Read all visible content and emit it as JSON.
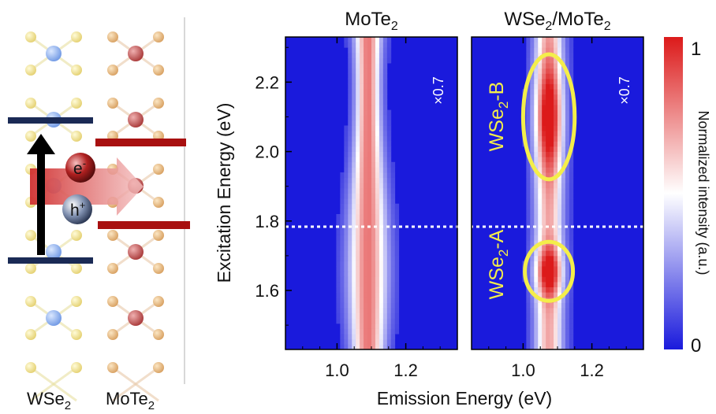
{
  "left_schematic": {
    "layer_label_left": "WSe",
    "layer_label_left_sub": "2",
    "layer_label_right": "MoTe",
    "layer_label_right_sub": "2",
    "electron_label": "e",
    "electron_sup": "-",
    "hole_label": "h",
    "hole_sup": "+",
    "colors": {
      "wse2_atom_blue": "#7ea6ea",
      "se_atom_yellow": "#eede84",
      "mo_atom_red": "#b84848",
      "te_atom_tan": "#e0b070",
      "wse2_band": "#1a2a55",
      "mote2_band": "#a81010",
      "transfer_arrow": "#d03030"
    }
  },
  "panel_left": {
    "title": "MoTe",
    "title_sub": "2",
    "scale_note": "×0.7"
  },
  "panel_right": {
    "title_a": "WSe",
    "title_a_sub": "2",
    "title_b": "/MoTe",
    "title_b_sub": "2",
    "scale_note": "×0.7",
    "annotation_b": "WSe",
    "annotation_b_sub": "2",
    "annotation_b_suffix": "-B",
    "annotation_a": "WSe",
    "annotation_a_sub": "2",
    "annotation_a_suffix": "-A",
    "highlight_color": "#f4ee4a"
  },
  "colorbar": {
    "label": "Normalized intensity (a.u.)",
    "max_label": "1",
    "min_label": "0",
    "colors": [
      "#1a1adc",
      "#ffffff",
      "#dc1a1a"
    ]
  },
  "chart_data": [
    {
      "type": "heatmap",
      "title": "MoTe2",
      "xlabel": "Emission Energy (eV)",
      "ylabel": "Excitation Energy (eV)",
      "xlim": [
        0.85,
        1.35
      ],
      "ylim": [
        1.43,
        2.33
      ],
      "xticks": [
        1.0,
        1.2
      ],
      "xtick_labels": [
        "1.0",
        "1.2"
      ],
      "yticks": [
        1.6,
        1.8,
        2.0,
        2.2
      ],
      "ytick_labels": [
        "1.6",
        "1.8",
        "2.0",
        "2.2"
      ],
      "emission_peak_ev": 1.09,
      "dashed_line_excitation_ev": 1.78,
      "scale_factor": "×0.7",
      "colorbar_range": [
        0,
        1
      ]
    },
    {
      "type": "heatmap",
      "title": "WSe2/MoTe2",
      "xlabel": "Emission Energy (eV)",
      "xlim": [
        0.85,
        1.35
      ],
      "ylim": [
        1.43,
        2.33
      ],
      "xticks": [
        1.0,
        1.2
      ],
      "xtick_labels": [
        "1.0",
        "1.2"
      ],
      "emission_peak_ev": 1.075,
      "dashed_line_excitation_ev": 1.78,
      "resonances": [
        {
          "name": "WSe2-B",
          "excitation_center_ev": 2.1,
          "excitation_halfwidth_ev": 0.18,
          "emission_center_ev": 1.075,
          "emission_halfwidth_ev": 0.075
        },
        {
          "name": "WSe2-A",
          "excitation_center_ev": 1.655,
          "excitation_halfwidth_ev": 0.085,
          "emission_center_ev": 1.075,
          "emission_halfwidth_ev": 0.07
        }
      ],
      "scale_factor": "×0.7",
      "colorbar_range": [
        0,
        1
      ]
    }
  ]
}
